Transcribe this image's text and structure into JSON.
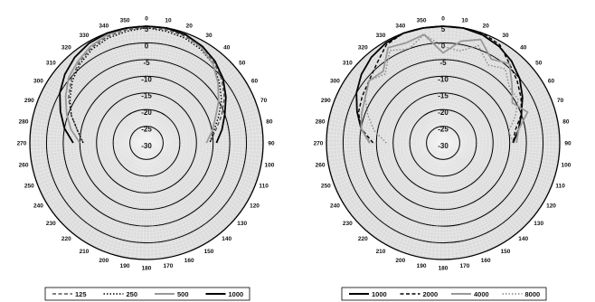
{
  "chart_data": [
    {
      "type": "polar-line",
      "title": "",
      "radial_ticks": [
        "5",
        "0",
        "-5",
        "-10",
        "-15",
        "-20",
        "-25",
        "-30"
      ],
      "radial_range": [
        -30,
        5
      ],
      "angle_ticks": [
        "0",
        "10",
        "20",
        "30",
        "40",
        "50",
        "60",
        "70",
        "80",
        "90",
        "100",
        "110",
        "120",
        "130",
        "140",
        "150",
        "160",
        "170",
        "180",
        "190",
        "200",
        "210",
        "220",
        "230",
        "240",
        "250",
        "260",
        "270",
        "280",
        "290",
        "300",
        "310",
        "320",
        "330",
        "340",
        "350"
      ],
      "legend_position": "bottom",
      "series": [
        {
          "name": "125",
          "style": "dashed",
          "color": "#555555",
          "angles": [
            270,
            280,
            290,
            300,
            310,
            320,
            330,
            340,
            350,
            0,
            10,
            20,
            30,
            40,
            50,
            60,
            70,
            80,
            90
          ],
          "values": [
            -11,
            -9,
            -6,
            -3,
            -0.5,
            1.5,
            3,
            4,
            4.5,
            4.5,
            4.5,
            4,
            3,
            1.5,
            -0.5,
            -3,
            -6,
            -9,
            -11
          ]
        },
        {
          "name": "250",
          "style": "dotted",
          "color": "#000000",
          "angles": [
            270,
            280,
            290,
            300,
            310,
            320,
            330,
            340,
            350,
            0,
            10,
            20,
            30,
            40,
            50,
            60,
            70,
            80,
            90
          ],
          "values": [
            -11,
            -9,
            -6,
            -3.5,
            -1,
            1,
            2.5,
            3.5,
            4,
            4.5,
            4,
            3.5,
            2.5,
            1,
            -1.5,
            -4,
            -7,
            -9.5,
            -11
          ]
        },
        {
          "name": "500",
          "style": "solid",
          "color": "#999999",
          "angles": [
            270,
            280,
            290,
            300,
            310,
            320,
            330,
            340,
            350,
            0,
            10,
            20,
            30,
            40,
            50,
            60,
            70,
            80,
            90
          ],
          "values": [
            -10,
            -7,
            -4.5,
            -2,
            0.5,
            2,
            3.5,
            4.5,
            5,
            5,
            5,
            4.5,
            3,
            1,
            -2,
            -5,
            -8,
            -10,
            -12
          ]
        },
        {
          "name": "1000",
          "style": "solid",
          "color": "#000000",
          "angles": [
            270,
            280,
            290,
            300,
            310,
            320,
            330,
            340,
            350,
            0,
            10,
            20,
            30,
            40,
            50,
            60,
            70,
            80,
            90
          ],
          "values": [
            -8,
            -5,
            -2.5,
            0,
            2,
            3.5,
            4.5,
            5,
            5,
            5,
            5,
            4.5,
            3.5,
            2,
            0,
            -2.5,
            -5,
            -7,
            -9
          ]
        }
      ]
    },
    {
      "type": "polar-line",
      "title": "",
      "radial_ticks": [
        "5",
        "0",
        "-5",
        "-10",
        "-15",
        "-20",
        "-25",
        "-30"
      ],
      "radial_range": [
        -30,
        5
      ],
      "angle_ticks": [
        "0",
        "10",
        "20",
        "30",
        "40",
        "50",
        "60",
        "70",
        "80",
        "90",
        "100",
        "110",
        "120",
        "130",
        "140",
        "150",
        "160",
        "170",
        "180",
        "190",
        "200",
        "210",
        "220",
        "230",
        "240",
        "250",
        "260",
        "270",
        "280",
        "290",
        "300",
        "310",
        "320",
        "330",
        "340",
        "350"
      ],
      "legend_position": "bottom",
      "series": [
        {
          "name": "1000",
          "style": "solid",
          "color": "#000000",
          "angles": [
            270,
            280,
            290,
            300,
            310,
            320,
            330,
            340,
            350,
            0,
            10,
            20,
            30,
            40,
            50,
            60,
            70,
            80,
            90
          ],
          "values": [
            -8,
            -5,
            -2.5,
            0,
            2,
            3.5,
            4.5,
            5,
            5,
            5,
            5,
            4.5,
            3.5,
            2,
            0,
            -2.5,
            -5,
            -7,
            -9
          ]
        },
        {
          "name": "2000",
          "style": "dashed",
          "color": "#000000",
          "angles": [
            270,
            280,
            290,
            300,
            310,
            320,
            330,
            340,
            350,
            0,
            10,
            20,
            30,
            40,
            50,
            60,
            70,
            80,
            90
          ],
          "values": [
            -9,
            -5,
            -3,
            -2,
            -1,
            1,
            4,
            5,
            5,
            5,
            5,
            5,
            4,
            1,
            -1,
            -3,
            -5,
            -8,
            -9
          ]
        },
        {
          "name": "4000",
          "style": "solid",
          "color": "#999999",
          "angles": [
            270,
            280,
            290,
            300,
            310,
            320,
            330,
            340,
            350,
            0,
            10,
            20,
            30,
            40,
            50,
            60,
            70,
            80,
            90
          ],
          "values": [
            -8,
            -5,
            -4,
            -3,
            -1,
            -2,
            3,
            2,
            3,
            -3,
            1,
            3,
            -1,
            1,
            -3,
            -6,
            -3,
            -7,
            -8
          ]
        },
        {
          "name": "8000",
          "style": "dotted",
          "color": "#888888",
          "angles": [
            270,
            280,
            290,
            300,
            310,
            320,
            330,
            340,
            350,
            0,
            10,
            20,
            30,
            40,
            50,
            60,
            70,
            80,
            90
          ],
          "values": [
            -13,
            -9,
            -6,
            -3,
            -1,
            -3,
            2,
            0,
            3,
            -1,
            -2,
            1,
            -3,
            -1,
            -4,
            -4,
            -7,
            -10,
            -9
          ]
        }
      ]
    }
  ]
}
